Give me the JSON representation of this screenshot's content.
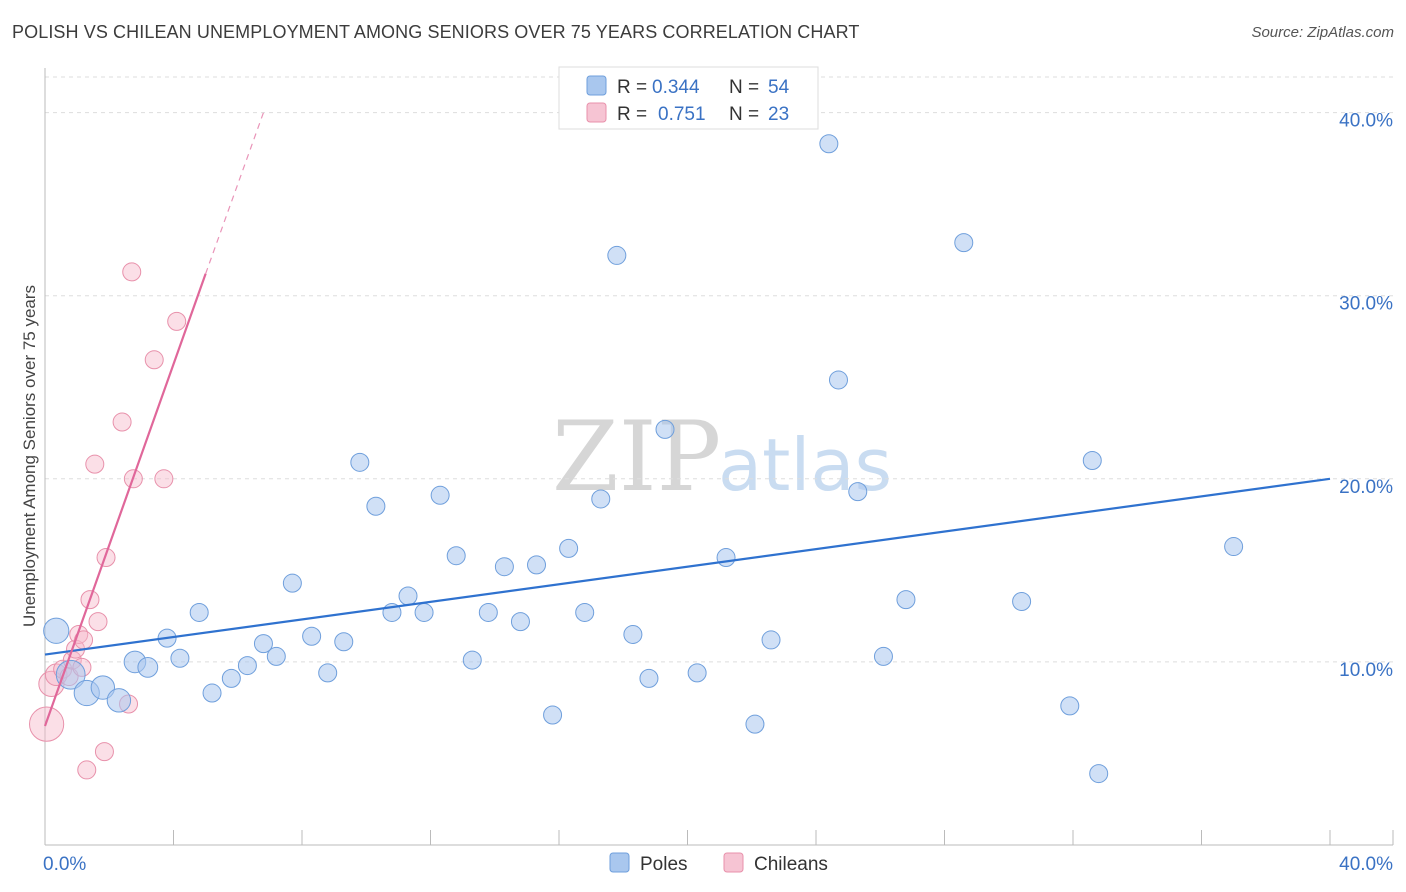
{
  "title": "POLISH VS CHILEAN UNEMPLOYMENT AMONG SENIORS OVER 75 YEARS CORRELATION CHART",
  "source": "Source: ZipAtlas.com",
  "watermark": {
    "zip": "ZIP",
    "atlas": "atlas"
  },
  "colors": {
    "poles": "#a9c7ee",
    "poles_stroke": "#6f9fdc",
    "poles_line": "#2f72cf",
    "chileans": "#f6b8ca",
    "chileans_stroke": "#e891ab",
    "chileans_line": "#e0679a",
    "axis_text": "#3a72c4",
    "grid": "#dddddd"
  },
  "legend": {
    "r_label": "R =",
    "n_label": "N =",
    "poles": {
      "r": "0.344",
      "n": "54"
    },
    "chileans": {
      "r": "0.751",
      "n": "23"
    }
  },
  "bottom_legend": {
    "poles": "Poles",
    "chileans": "Chileans"
  },
  "chart_data": {
    "type": "scatter",
    "title": "POLISH VS CHILEAN UNEMPLOYMENT AMONG SENIORS OVER 75 YEARS CORRELATION CHART",
    "xlabel": "",
    "ylabel": "Unemployment Among Seniors over 75 years",
    "xlim": [
      0,
      40
    ],
    "ylim": [
      0,
      42
    ],
    "x_tick_labels": [
      "0.0%",
      "40.0%"
    ],
    "y_ticks": [
      10,
      20,
      30,
      40
    ],
    "y_tick_labels": [
      "10.0%",
      "20.0%",
      "30.0%",
      "40.0%"
    ],
    "grid": true,
    "series": [
      {
        "name": "Poles",
        "r": 0.344,
        "n": 54,
        "trend": {
          "x": [
            0,
            40
          ],
          "y": [
            10.4,
            20.0
          ]
        },
        "points": [
          {
            "x": 0.35,
            "y": 11.7,
            "s": 1.4
          },
          {
            "x": 0.8,
            "y": 9.3,
            "s": 1.6
          },
          {
            "x": 1.3,
            "y": 8.3,
            "s": 1.4
          },
          {
            "x": 1.8,
            "y": 8.6,
            "s": 1.3
          },
          {
            "x": 2.3,
            "y": 7.9,
            "s": 1.3
          },
          {
            "x": 2.8,
            "y": 10.0,
            "s": 1.2
          },
          {
            "x": 3.2,
            "y": 9.7,
            "s": 1.1
          },
          {
            "x": 3.8,
            "y": 11.3,
            "s": 1
          },
          {
            "x": 4.2,
            "y": 10.2,
            "s": 1
          },
          {
            "x": 4.8,
            "y": 12.7,
            "s": 1
          },
          {
            "x": 5.2,
            "y": 8.3,
            "s": 1
          },
          {
            "x": 5.8,
            "y": 9.1,
            "s": 1
          },
          {
            "x": 6.3,
            "y": 9.8,
            "s": 1
          },
          {
            "x": 6.8,
            "y": 11.0,
            "s": 1
          },
          {
            "x": 7.2,
            "y": 10.3,
            "s": 1
          },
          {
            "x": 7.7,
            "y": 14.3,
            "s": 1
          },
          {
            "x": 8.3,
            "y": 11.4,
            "s": 1
          },
          {
            "x": 8.8,
            "y": 9.4,
            "s": 1
          },
          {
            "x": 9.3,
            "y": 11.1,
            "s": 1
          },
          {
            "x": 9.8,
            "y": 20.9,
            "s": 1
          },
          {
            "x": 10.3,
            "y": 18.5,
            "s": 1
          },
          {
            "x": 10.8,
            "y": 12.7,
            "s": 1
          },
          {
            "x": 11.3,
            "y": 13.6,
            "s": 1
          },
          {
            "x": 11.8,
            "y": 12.7,
            "s": 1
          },
          {
            "x": 12.3,
            "y": 19.1,
            "s": 1
          },
          {
            "x": 12.8,
            "y": 15.8,
            "s": 1
          },
          {
            "x": 13.3,
            "y": 10.1,
            "s": 1
          },
          {
            "x": 13.8,
            "y": 12.7,
            "s": 1
          },
          {
            "x": 14.3,
            "y": 15.2,
            "s": 1
          },
          {
            "x": 14.8,
            "y": 12.2,
            "s": 1
          },
          {
            "x": 15.3,
            "y": 15.3,
            "s": 1
          },
          {
            "x": 15.8,
            "y": 7.1,
            "s": 1
          },
          {
            "x": 16.3,
            "y": 16.2,
            "s": 1
          },
          {
            "x": 16.8,
            "y": 12.7,
            "s": 1
          },
          {
            "x": 17.3,
            "y": 18.9,
            "s": 1
          },
          {
            "x": 17.8,
            "y": 32.2,
            "s": 1
          },
          {
            "x": 18.3,
            "y": 11.5,
            "s": 1
          },
          {
            "x": 18.8,
            "y": 9.1,
            "s": 1
          },
          {
            "x": 19.3,
            "y": 22.7,
            "s": 1
          },
          {
            "x": 20.3,
            "y": 9.4,
            "s": 1
          },
          {
            "x": 21.2,
            "y": 15.7,
            "s": 1
          },
          {
            "x": 22.1,
            "y": 6.6,
            "s": 1
          },
          {
            "x": 22.6,
            "y": 11.2,
            "s": 1
          },
          {
            "x": 24.4,
            "y": 38.3,
            "s": 1
          },
          {
            "x": 24.7,
            "y": 25.4,
            "s": 1
          },
          {
            "x": 25.3,
            "y": 19.3,
            "s": 1
          },
          {
            "x": 26.1,
            "y": 10.3,
            "s": 1
          },
          {
            "x": 26.8,
            "y": 13.4,
            "s": 1
          },
          {
            "x": 28.6,
            "y": 32.9,
            "s": 1
          },
          {
            "x": 30.4,
            "y": 13.3,
            "s": 1
          },
          {
            "x": 31.9,
            "y": 7.6,
            "s": 1
          },
          {
            "x": 32.6,
            "y": 21.0,
            "s": 1
          },
          {
            "x": 32.8,
            "y": 3.9,
            "s": 1
          },
          {
            "x": 37.0,
            "y": 16.3,
            "s": 1
          }
        ]
      },
      {
        "name": "Chileans",
        "r": 0.751,
        "n": 23,
        "trend": {
          "x": [
            0,
            5.0
          ],
          "y": [
            6.5,
            31.2
          ]
        },
        "trend_dashed": {
          "x": [
            5.0,
            6.8
          ],
          "y": [
            31.2,
            40.0
          ]
        },
        "points": [
          {
            "x": 0.05,
            "y": 6.6,
            "s": 1.9
          },
          {
            "x": 0.2,
            "y": 8.8,
            "s": 1.4
          },
          {
            "x": 0.35,
            "y": 9.3,
            "s": 1.2
          },
          {
            "x": 0.55,
            "y": 9.6,
            "s": 1
          },
          {
            "x": 0.75,
            "y": 9.2,
            "s": 1
          },
          {
            "x": 0.85,
            "y": 10.1,
            "s": 1
          },
          {
            "x": 0.95,
            "y": 10.7,
            "s": 1
          },
          {
            "x": 1.05,
            "y": 11.5,
            "s": 1
          },
          {
            "x": 1.15,
            "y": 9.7,
            "s": 1
          },
          {
            "x": 1.2,
            "y": 11.2,
            "s": 1
          },
          {
            "x": 1.3,
            "y": 4.1,
            "s": 1
          },
          {
            "x": 1.4,
            "y": 13.4,
            "s": 1
          },
          {
            "x": 1.55,
            "y": 20.8,
            "s": 1
          },
          {
            "x": 1.65,
            "y": 12.2,
            "s": 1
          },
          {
            "x": 1.85,
            "y": 5.1,
            "s": 1
          },
          {
            "x": 1.9,
            "y": 15.7,
            "s": 1
          },
          {
            "x": 2.4,
            "y": 23.1,
            "s": 1
          },
          {
            "x": 2.6,
            "y": 7.7,
            "s": 1
          },
          {
            "x": 2.7,
            "y": 31.3,
            "s": 1
          },
          {
            "x": 2.75,
            "y": 20.0,
            "s": 1
          },
          {
            "x": 3.4,
            "y": 26.5,
            "s": 1
          },
          {
            "x": 3.7,
            "y": 20.0,
            "s": 1
          },
          {
            "x": 4.1,
            "y": 28.6,
            "s": 1
          }
        ]
      }
    ]
  }
}
